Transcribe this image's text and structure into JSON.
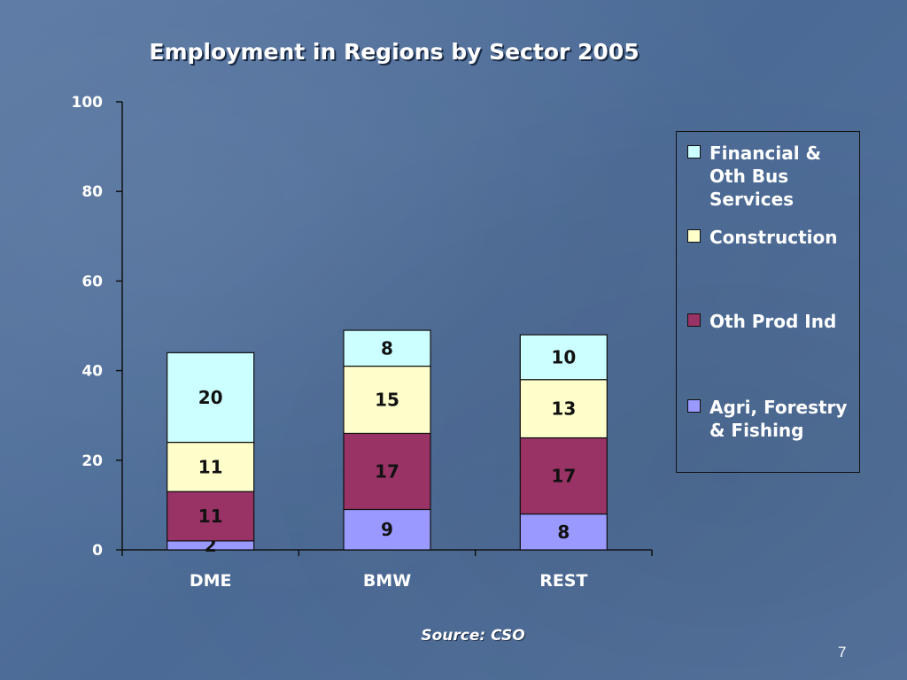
{
  "slide": {
    "title": "Employment in Regions by Sector 2005",
    "source": "Source: CSO",
    "page_number": "7"
  },
  "chart_data": {
    "type": "bar",
    "stacked": true,
    "title": "Employment in Regions by Sector 2005",
    "categories": [
      "DME",
      "BMW",
      "REST"
    ],
    "ylim": [
      0,
      100
    ],
    "yticks": [
      0,
      20,
      40,
      60,
      80,
      100
    ],
    "series": [
      {
        "name": "Agri, Forestry & Fishing",
        "values": [
          2,
          9,
          8
        ],
        "color": "#9999ff"
      },
      {
        "name": "Oth Prod Ind",
        "values": [
          11,
          17,
          17
        ],
        "color": "#993366"
      },
      {
        "name": "Construction",
        "values": [
          11,
          15,
          13
        ],
        "color": "#ffffcc"
      },
      {
        "name": "Financial & Oth Bus Services",
        "values": [
          20,
          8,
          10
        ],
        "color": "#ccffff"
      }
    ],
    "legend_position": "right",
    "grid": false
  }
}
